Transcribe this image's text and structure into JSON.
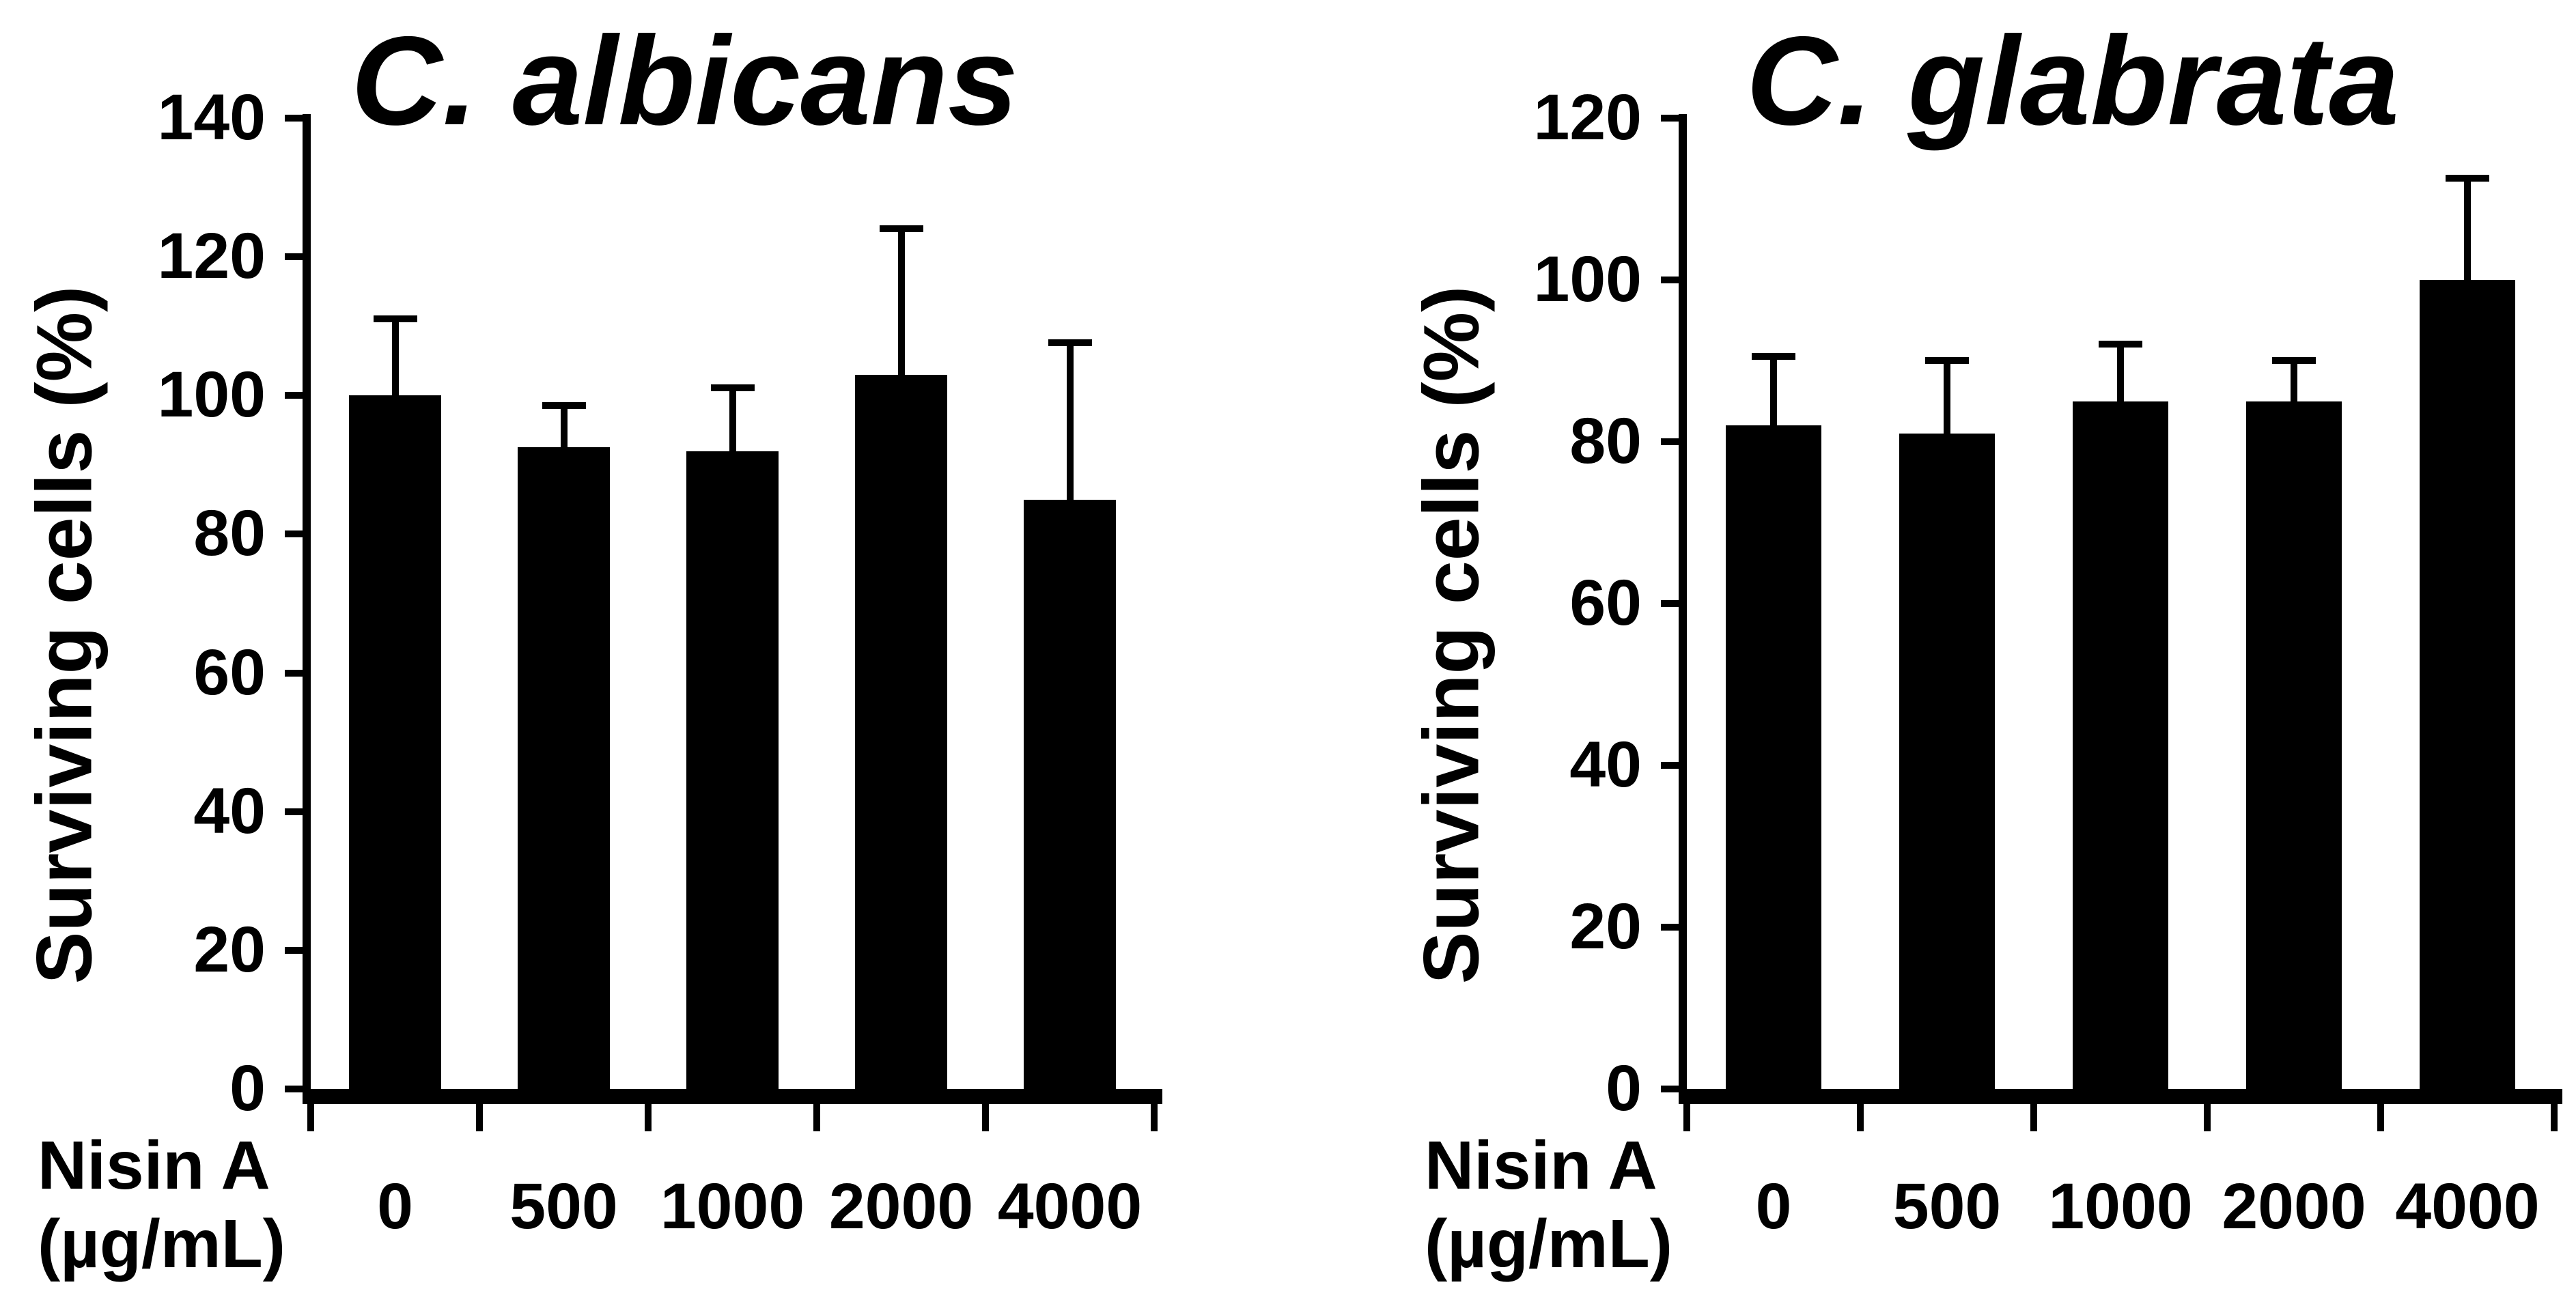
{
  "figure": {
    "background": "#ffffff",
    "text_color": "#000000"
  },
  "chart_data": [
    {
      "type": "bar",
      "title": "C. albicans",
      "ylabel": "Surviving cells (%)",
      "xlabel_line1": "Nisin A",
      "xlabel_line2": "(µg/mL)",
      "categories": [
        "0",
        "500",
        "1000",
        "2000",
        "4000"
      ],
      "values": [
        100,
        92.5,
        92,
        103,
        85
      ],
      "errors_plus": [
        11,
        6,
        9,
        21,
        22.5
      ],
      "ylim": [
        0,
        140
      ],
      "yticks": [
        0,
        20,
        40,
        60,
        80,
        100,
        120,
        140
      ],
      "bar_color": "#000000",
      "axis_color": "#000000",
      "grid": false,
      "legend": null
    },
    {
      "type": "bar",
      "title": "C. glabrata",
      "ylabel": "Surviving cells (%)",
      "xlabel_line1": "Nisin A",
      "xlabel_line2": "(µg/mL)",
      "categories": [
        "0",
        "500",
        "1000",
        "2000",
        "4000"
      ],
      "values": [
        82,
        81,
        85,
        85,
        100
      ],
      "errors_plus": [
        8.5,
        9,
        7,
        5,
        12.5
      ],
      "ylim": [
        0,
        120
      ],
      "yticks": [
        0,
        20,
        40,
        60,
        80,
        100,
        120
      ],
      "bar_color": "#000000",
      "axis_color": "#000000",
      "grid": false,
      "legend": null
    }
  ]
}
